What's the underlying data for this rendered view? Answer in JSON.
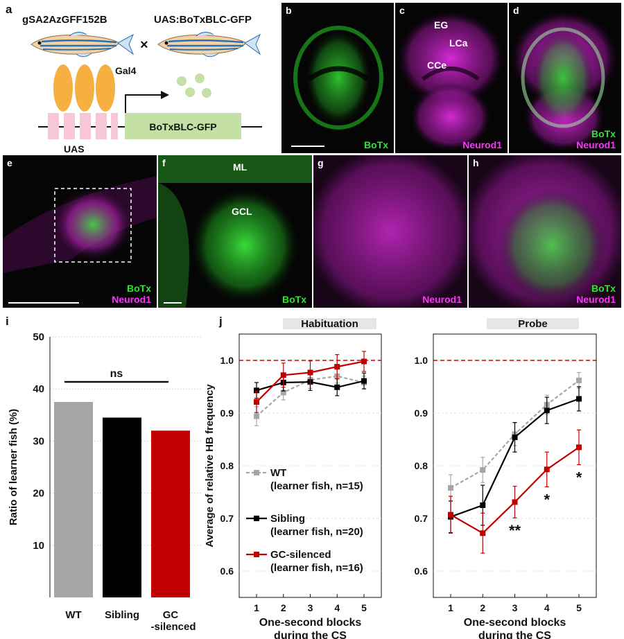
{
  "panel_a": {
    "letter": "a",
    "strain_left": "gSA2AzGFF152B",
    "strain_right": "UAS:BoTxBLC-GFP",
    "cross_symbol": "×",
    "gal4_label": "Gal4",
    "uas_label": "UAS",
    "transgene_label": "BoTxBLC-GFP"
  },
  "panel_b": {
    "letter": "b",
    "label": "BoTx"
  },
  "panel_c": {
    "letter": "c",
    "label": "Neurod1",
    "region_eg": "EG",
    "region_lca": "LCa",
    "region_cce": "CCe"
  },
  "panel_d": {
    "letter": "d",
    "label1": "BoTx",
    "label2": "Neurod1"
  },
  "panel_e": {
    "letter": "e",
    "label1": "BoTx",
    "label2": "Neurod1"
  },
  "panel_f": {
    "letter": "f",
    "label": "BoTx",
    "region_ml": "ML",
    "region_gcl": "GCL"
  },
  "panel_g": {
    "letter": "g",
    "label": "Neurod1"
  },
  "panel_h": {
    "letter": "h",
    "label1": "BoTx",
    "label2": "Neurod1"
  },
  "colors": {
    "wt": "#a6a6a6",
    "sibling": "#000000",
    "gc_silenced": "#c00000",
    "botx_green": "#2ee62e",
    "neurod1_magenta": "#ff33ff",
    "reference_line": "#c00000"
  },
  "panel_i": {
    "letter": "i",
    "significance": "ns"
  },
  "panel_j": {
    "letter": "j",
    "habituation_title": "Habituation",
    "probe_title": "Probe",
    "legend": [
      {
        "name": "WT",
        "detail": "(learner fish, n=15)"
      },
      {
        "name": "Sibling",
        "detail": "(learner fish, n=20)"
      },
      {
        "name": "GC-silenced",
        "detail": "(learner fish, n=16)"
      }
    ],
    "probe_significance": [
      {
        "x": 3,
        "mark": "**"
      },
      {
        "x": 4,
        "mark": "*"
      },
      {
        "x": 5,
        "mark": "*"
      }
    ]
  },
  "chart_data": [
    {
      "type": "bar",
      "panel": "i",
      "categories": [
        "WT",
        "Sibling",
        "GC\n-silenced"
      ],
      "values": [
        37.5,
        34.5,
        32.0
      ],
      "title": "",
      "xlabel": "",
      "ylabel": "Ratio of learner fish (%)",
      "ylim": [
        0,
        50
      ],
      "yticks": [
        10,
        20,
        30,
        40,
        50
      ],
      "grid": true
    },
    {
      "type": "line",
      "panel": "j-habituation",
      "title": "Habituation",
      "x": [
        1,
        2,
        3,
        4,
        5
      ],
      "xlabel": "One-second blocks\nduring the CS",
      "ylabel": "Average of relative HB frequency",
      "ylim": [
        0.55,
        1.05
      ],
      "yticks": [
        0.6,
        0.7,
        0.8,
        0.9,
        1.0
      ],
      "reference_line": 1.0,
      "series": [
        {
          "name": "WT",
          "values": [
            0.894,
            0.939,
            0.963,
            0.97,
            0.958
          ],
          "errors": [
            0.018,
            0.014,
            0.016,
            0.013,
            0.012
          ]
        },
        {
          "name": "Sibling",
          "values": [
            0.943,
            0.958,
            0.959,
            0.949,
            0.961
          ],
          "errors": [
            0.015,
            0.016,
            0.016,
            0.016,
            0.015
          ]
        },
        {
          "name": "GC-silenced",
          "values": [
            0.921,
            0.972,
            0.977,
            0.988,
            0.998
          ],
          "errors": [
            0.02,
            0.023,
            0.022,
            0.023,
            0.019
          ]
        }
      ]
    },
    {
      "type": "line",
      "panel": "j-probe",
      "title": "Probe",
      "x": [
        1,
        2,
        3,
        4,
        5
      ],
      "xlabel": "One-second blocks\nduring the CS",
      "ylabel": "",
      "ylim": [
        0.55,
        1.05
      ],
      "yticks": [
        0.6,
        0.7,
        0.8,
        0.9,
        1.0
      ],
      "reference_line": 1.0,
      "series": [
        {
          "name": "WT",
          "values": [
            0.758,
            0.792,
            0.86,
            0.916,
            0.962
          ],
          "errors": [
            0.025,
            0.024,
            0.022,
            0.018,
            0.015
          ]
        },
        {
          "name": "Sibling",
          "values": [
            0.703,
            0.725,
            0.854,
            0.905,
            0.927
          ],
          "errors": [
            0.03,
            0.038,
            0.028,
            0.025,
            0.023
          ]
        },
        {
          "name": "GC-silenced",
          "values": [
            0.707,
            0.672,
            0.731,
            0.793,
            0.835
          ],
          "errors": [
            0.035,
            0.038,
            0.03,
            0.033,
            0.033
          ]
        }
      ]
    }
  ]
}
